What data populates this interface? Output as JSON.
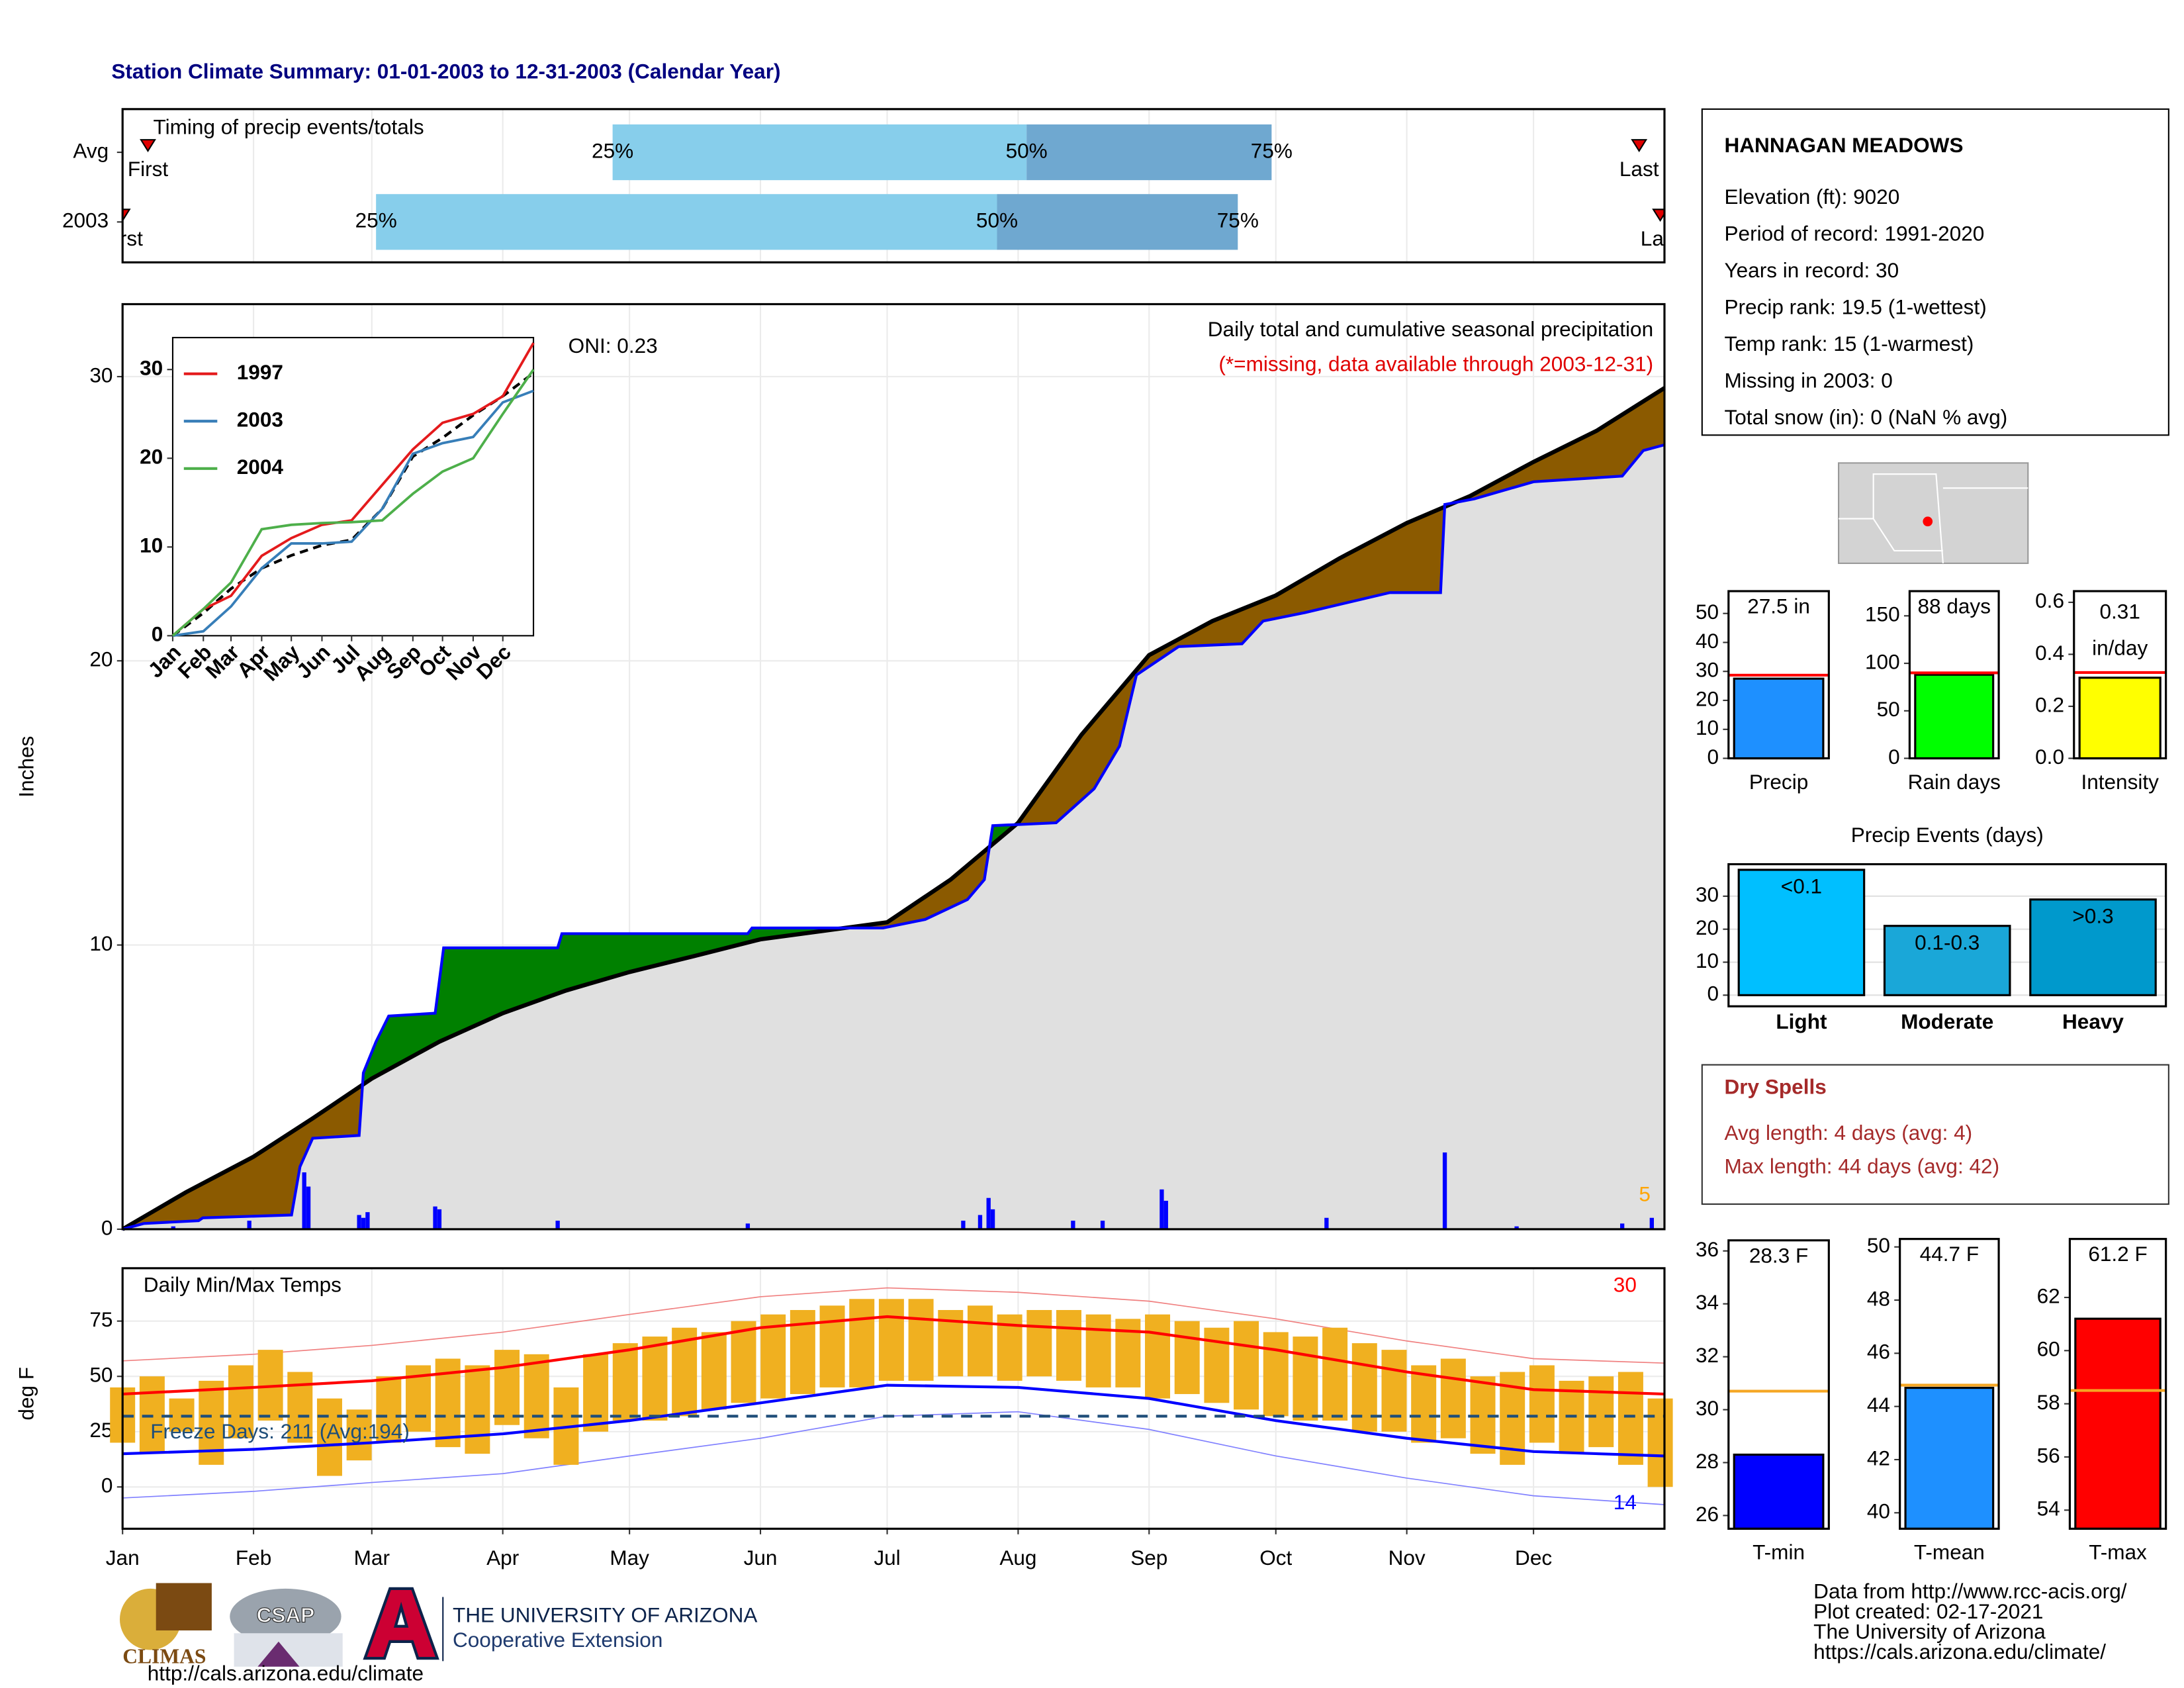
{
  "title": "Station Climate Summary: 01-01-2003 to 12-31-2003 (Calendar Year)",
  "chart_data": [
    {
      "type": "timing",
      "label": "Timing of precip events/totals",
      "categories": [
        "Avg",
        "2003"
      ],
      "xlim": [
        0,
        365
      ],
      "first": [
        6,
        0
      ],
      "last": [
        359,
        364
      ],
      "q25": [
        116,
        60
      ],
      "q50": [
        214,
        207
      ],
      "q75": [
        272,
        264
      ],
      "marker_labels": [
        "First",
        "Last"
      ],
      "quantile_labels": [
        "25%",
        "50%",
        "75%"
      ],
      "colors": [
        "#87ceeb",
        "#6fa8d0"
      ],
      "marker_color": "#e00000"
    },
    {
      "type": "cumulative",
      "ylabel": "Inches",
      "xlim": [
        0,
        365
      ],
      "ylim": [
        0,
        32.55
      ],
      "yticks": [
        0,
        10,
        20,
        30
      ],
      "title": "Daily total and cumulative seasonal precipitation",
      "note": "(*=missing, data available through 2003-12-31)",
      "oni": "ONI: 0.23",
      "bar_max": "5",
      "series": [
        {
          "color": "#000000",
          "x": [
            0,
            15,
            31,
            45,
            59,
            75,
            90,
            105,
            120,
            135,
            151,
            166,
            181,
            196,
            212,
            227,
            243,
            258,
            273,
            288,
            304,
            319,
            334,
            349,
            365
          ],
          "values": [
            0,
            1.3,
            2.55,
            3.9,
            5.3,
            6.6,
            7.6,
            8.4,
            9.05,
            9.6,
            10.2,
            10.5,
            10.8,
            12.3,
            14.3,
            17.4,
            20.2,
            21.4,
            22.3,
            23.6,
            24.85,
            25.8,
            27.0,
            28.1,
            29.6
          ]
        },
        {
          "color": "#0000ff",
          "x": [
            0,
            5,
            18,
            19,
            40,
            42,
            45,
            56,
            57,
            60,
            63,
            74,
            76,
            103,
            104,
            148,
            149,
            180,
            190,
            200,
            204,
            206,
            221,
            230,
            236,
            240,
            248,
            250,
            265,
            270,
            280,
            300,
            312,
            313,
            320,
            334,
            355,
            360,
            365
          ],
          "values": [
            0,
            0.2,
            0.3,
            0.4,
            0.5,
            2.2,
            3.2,
            3.3,
            5.5,
            6.6,
            7.5,
            7.6,
            9.9,
            9.9,
            10.4,
            10.4,
            10.6,
            10.6,
            10.9,
            11.6,
            12.3,
            14.2,
            14.3,
            15.5,
            17.0,
            19.5,
            20.3,
            20.5,
            20.6,
            21.4,
            21.7,
            22.4,
            22.4,
            25.5,
            25.7,
            26.3,
            26.5,
            27.4,
            27.6
          ]
        }
      ],
      "surplus_color": "#008000",
      "deficit_color": "#8b5a00",
      "base_color": "#e0e0e0",
      "daily": {
        "color": "#0000ff",
        "x": [
          12,
          30,
          43,
          44,
          56,
          57,
          58,
          74,
          75,
          103,
          148,
          199,
          203,
          205,
          206,
          225,
          232,
          246,
          247,
          285,
          313,
          330,
          355,
          362
        ],
        "values": [
          0.1,
          0.3,
          2.0,
          1.5,
          0.5,
          0.4,
          0.6,
          0.8,
          0.7,
          0.3,
          0.2,
          0.3,
          0.5,
          1.1,
          0.7,
          0.3,
          0.3,
          1.4,
          1.0,
          0.4,
          2.7,
          0.1,
          0.2,
          0.4
        ]
      }
    },
    {
      "type": "line",
      "xlim": [
        0,
        365
      ],
      "ylim": [
        0,
        33.6
      ],
      "yticks": [
        0,
        10,
        20,
        30
      ],
      "legend": "upper left",
      "x": [
        0,
        31,
        59,
        90,
        120,
        151,
        181,
        212,
        243,
        273,
        304,
        334,
        365
      ],
      "xticks": [
        {
          "value": 0,
          "label": "Jan"
        },
        {
          "value": 31,
          "label": "Feb"
        },
        {
          "value": 59,
          "label": "Mar"
        },
        {
          "value": 90,
          "label": "Apr"
        },
        {
          "value": 120,
          "label": "May"
        },
        {
          "value": 151,
          "label": "Jun"
        },
        {
          "value": 181,
          "label": "Jul"
        },
        {
          "value": 212,
          "label": "Aug"
        },
        {
          "value": 243,
          "label": "Sep"
        },
        {
          "value": 273,
          "label": "Oct"
        },
        {
          "value": 304,
          "label": "Nov"
        },
        {
          "value": 334,
          "label": "Dec"
        }
      ],
      "series": [
        {
          "name": "1997",
          "color": "#e41a1c",
          "values": [
            0,
            3,
            4.5,
            9,
            11,
            12.5,
            13,
            17,
            21,
            24,
            25,
            27,
            33
          ]
        },
        {
          "name": "2003",
          "color": "#377eb8",
          "values": [
            0,
            0.5,
            3.3,
            7.6,
            10.4,
            10.4,
            10.6,
            14.3,
            20.5,
            21.7,
            22.4,
            26.3,
            27.6
          ]
        },
        {
          "name": "2004",
          "color": "#4daf4a",
          "values": [
            0,
            3,
            6,
            12,
            12.5,
            12.7,
            12.8,
            13,
            16,
            18.5,
            20,
            25,
            30
          ]
        }
      ],
      "avg": {
        "color": "#000000",
        "values": [
          0,
          2.55,
          5.3,
          7.6,
          9.05,
          10.2,
          10.8,
          14.3,
          20.2,
          22.3,
          24.85,
          27.0,
          29.6
        ]
      }
    },
    {
      "type": "summary_bar",
      "categories": [
        "Precip"
      ],
      "values": [
        27.5
      ],
      "value_labels": [
        "27.5 in"
      ],
      "avg": 28.7,
      "color": "#1e90ff",
      "avg_color": "#ff0000",
      "ylim": [
        0,
        57.7
      ],
      "yticks": [
        0,
        10,
        20,
        30,
        40,
        50
      ]
    },
    {
      "type": "summary_bar",
      "categories": [
        "Rain days"
      ],
      "values": [
        88
      ],
      "value_labels": [
        "88 days"
      ],
      "avg": 90,
      "color": "#00ff00",
      "avg_color": "#ff0000",
      "ylim": [
        0,
        176
      ],
      "yticks": [
        0,
        50,
        100,
        150
      ]
    },
    {
      "type": "summary_bar",
      "categories": [
        "Intensity"
      ],
      "values": [
        0.31
      ],
      "value_labels": [
        "0.31 in/day"
      ],
      "avg": 0.33,
      "color": "#ffff00",
      "avg_color": "#ff0000",
      "ylim": [
        0,
        0.643
      ],
      "yticks": [
        {
          "value": 0,
          "label": "0.0"
        },
        0.2,
        0.4,
        0.6
      ]
    },
    {
      "type": "bar",
      "title": "Precip Events (days)",
      "categories": [
        "Light",
        "Moderate",
        "Heavy"
      ],
      "values": [
        38,
        21,
        29
      ],
      "bar_labels": [
        "<0.1",
        "0.1-0.3",
        ">0.3"
      ],
      "colors": [
        "#00bfff",
        "#1aa7d8",
        "#0099cc"
      ],
      "ylim": [
        0,
        39.7
      ],
      "yticks": [
        0,
        10,
        20,
        30
      ],
      "grid": true
    },
    {
      "type": "temperature",
      "label": "Daily Min/Max Temps",
      "ylabel": "deg F",
      "xlim": [
        0,
        365
      ],
      "ylim": [
        -18.9,
        98.9
      ],
      "yticks": [
        0,
        25,
        50,
        75
      ],
      "xticks": [
        {
          "value": 0,
          "label": "Jan"
        },
        {
          "value": 31,
          "label": "Feb"
        },
        {
          "value": 59,
          "label": "Mar"
        },
        {
          "value": 90,
          "label": "Apr"
        },
        {
          "value": 120,
          "label": "May"
        },
        {
          "value": 151,
          "label": "Jun"
        },
        {
          "value": 181,
          "label": "Jul"
        },
        {
          "value": 212,
          "label": "Aug"
        },
        {
          "value": 243,
          "label": "Sep"
        },
        {
          "value": 273,
          "label": "Oct"
        },
        {
          "value": 304,
          "label": "Nov"
        },
        {
          "value": 334,
          "label": "Dec"
        }
      ],
      "daily": {
        "color": "#f0b020",
        "x": [
          0,
          7,
          14,
          21,
          28,
          35,
          42,
          49,
          56,
          63,
          70,
          77,
          84,
          91,
          98,
          105,
          112,
          119,
          126,
          133,
          140,
          147,
          154,
          161,
          168,
          175,
          182,
          189,
          196,
          203,
          210,
          217,
          224,
          231,
          238,
          245,
          252,
          259,
          266,
          273,
          280,
          287,
          294,
          301,
          308,
          315,
          322,
          329,
          336,
          343,
          350,
          357,
          364
        ],
        "low": [
          20,
          15,
          25,
          10,
          22,
          30,
          20,
          5,
          12,
          20,
          25,
          18,
          15,
          28,
          22,
          10,
          25,
          30,
          30,
          32,
          35,
          38,
          40,
          42,
          45,
          45,
          48,
          48,
          50,
          50,
          48,
          50,
          48,
          45,
          45,
          40,
          42,
          38,
          35,
          32,
          30,
          30,
          25,
          25,
          20,
          22,
          15,
          10,
          20,
          15,
          18,
          10,
          0
        ],
        "high": [
          45,
          50,
          40,
          48,
          55,
          62,
          52,
          40,
          35,
          50,
          55,
          58,
          55,
          62,
          60,
          45,
          60,
          65,
          68,
          72,
          70,
          75,
          78,
          80,
          82,
          85,
          85,
          85,
          80,
          82,
          78,
          80,
          80,
          78,
          76,
          78,
          75,
          72,
          75,
          70,
          68,
          72,
          65,
          62,
          55,
          58,
          50,
          52,
          55,
          48,
          50,
          52,
          40
        ]
      },
      "normals": {
        "x": [
          0,
          31,
          59,
          90,
          120,
          151,
          181,
          212,
          243,
          273,
          304,
          334,
          365
        ],
        "max": [
          42,
          45,
          48,
          54,
          62,
          72,
          77,
          73,
          70,
          62,
          52,
          44,
          42
        ],
        "min": [
          15,
          17,
          20,
          24,
          30,
          38,
          46,
          45,
          40,
          30,
          22,
          16,
          14
        ],
        "record_max": [
          57,
          60,
          64,
          70,
          78,
          86,
          90,
          88,
          84,
          76,
          66,
          58,
          56
        ],
        "record_min": [
          -5,
          -2,
          2,
          6,
          14,
          22,
          32,
          34,
          26,
          14,
          4,
          -4,
          -8
        ],
        "max_color": "#ff0000",
        "min_color": "#0000ff",
        "record_max_color": "#f08080",
        "record_min_color": "#8080ff"
      },
      "freeze": {
        "value": 32,
        "label": "Freeze Days: 211 (Avg:194)",
        "color": "#1f4e79"
      },
      "annotations": [
        {
          "text": "30",
          "color": "#ff0000"
        },
        {
          "text": "14",
          "color": "#0000ff"
        }
      ]
    },
    {
      "type": "summary_bar",
      "categories": [
        "T-min"
      ],
      "values": [
        28.3
      ],
      "value_labels": [
        "28.3 F"
      ],
      "avg": 30.7,
      "color": "#0000ff",
      "avg_color": "#f5a623",
      "ylim": [
        25.5,
        36.4
      ],
      "yticks": [
        26,
        28,
        30,
        32,
        34,
        36
      ]
    },
    {
      "type": "summary_bar",
      "categories": [
        "T-mean"
      ],
      "values": [
        44.7
      ],
      "value_labels": [
        "44.7 F"
      ],
      "avg": 44.8,
      "color": "#1e90ff",
      "avg_color": "#f5a623",
      "ylim": [
        39.4,
        50.3
      ],
      "yticks": [
        40,
        42,
        44,
        46,
        48,
        50
      ]
    },
    {
      "type": "summary_bar",
      "categories": [
        "T-max"
      ],
      "values": [
        61.2
      ],
      "value_labels": [
        "61.2 F"
      ],
      "avg": 58.5,
      "color": "#ff0000",
      "avg_color": "#f5a623",
      "ylim": [
        53.3,
        64.2
      ],
      "yticks": [
        54,
        56,
        58,
        60,
        62
      ]
    }
  ],
  "station": {
    "name": "HANNAGAN MEADOWS",
    "lines": [
      "Elevation (ft): 9020",
      "Period of record: 1991-2020",
      "Years in record: 30",
      "Precip rank: 19.5 (1-wettest)",
      "Temp rank: 15 (1-warmest)",
      "Missing in 2003: 0",
      "Total snow (in): 0 (NaN % avg)"
    ]
  },
  "dry_spells": {
    "title": "Dry Spells",
    "lines": [
      "Avg length: 4 days (avg: 4)",
      "Max length: 44 days (avg: 42)"
    ]
  },
  "logos": {
    "climas": "CLIMAS",
    "csap": "CSAP",
    "csap_url": "http://cals.arizona.edu/climate",
    "university": "THE UNIVERSITY OF ARIZONA",
    "extension": "Cooperative Extension"
  },
  "credits": [
    "Data from http://www.rcc-acis.org/",
    "Plot created: 02-17-2021",
    "The University of Arizona",
    "https://cals.arizona.edu/climate/"
  ]
}
